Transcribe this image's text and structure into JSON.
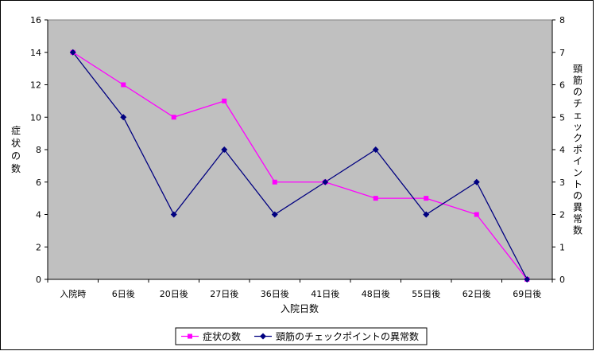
{
  "chart_data": {
    "type": "line",
    "categories": [
      "入院時",
      "6日後",
      "20日後",
      "27日後",
      "36日後",
      "41日後",
      "48日後",
      "55日後",
      "62日後",
      "69日後"
    ],
    "xlabel": "入院日数",
    "ylabel": "症状の数",
    "y2label": "頸筋のチェックポイントの異常数",
    "ylim": [
      0,
      16
    ],
    "y2lim": [
      0,
      8
    ],
    "yticks": [
      "0",
      "2",
      "4",
      "6",
      "8",
      "10",
      "12",
      "14",
      "16"
    ],
    "y2ticks": [
      "0",
      "1",
      "2",
      "3",
      "4",
      "5",
      "6",
      "7",
      "8"
    ],
    "grid": false,
    "legend_position": "bottom",
    "series": [
      {
        "name": "症状の数",
        "axis": "left",
        "color": "#ff00ff",
        "marker": "square",
        "values": [
          14,
          12,
          10,
          11,
          6,
          6,
          5,
          5,
          4,
          0
        ]
      },
      {
        "name": "頸筋のチェックポイントの異常数",
        "axis": "right",
        "color": "#000080",
        "marker": "diamond",
        "values": [
          7,
          5,
          2,
          4,
          2,
          3,
          4,
          2,
          3,
          0
        ]
      }
    ]
  }
}
